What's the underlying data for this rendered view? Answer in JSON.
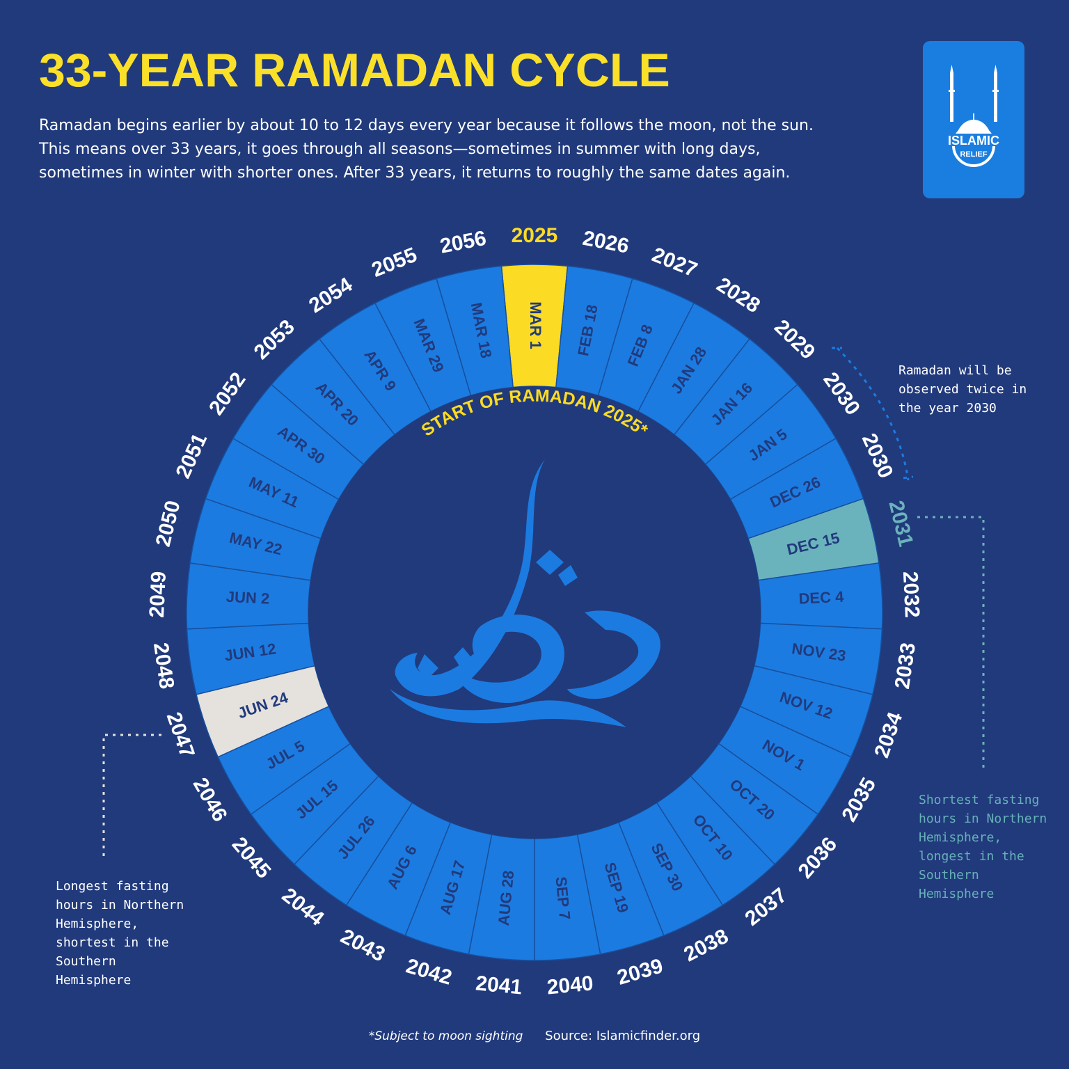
{
  "header": {
    "title": "33-YEAR RAMADAN CYCLE",
    "description": "Ramadan begins earlier by about 10 to 12 days every year because it follows the moon, not the sun. This means over 33 years, it goes through all seasons—sometimes in summer with long days, sometimes in winter with shorter ones. After 33 years, it returns to roughly the same dates again."
  },
  "logo": {
    "line1": "ISLAMIC",
    "line2": "RELIEF",
    "icon": "mosque-icon"
  },
  "wheel": {
    "center_label": "START OF RAMADAN 2025*",
    "center_art": "ramadan-calligraphy",
    "segments": [
      {
        "year": "2025",
        "date": "MAR 1",
        "highlight": "current"
      },
      {
        "year": "2026",
        "date": "FEB 18"
      },
      {
        "year": "2027",
        "date": "FEB 8"
      },
      {
        "year": "2028",
        "date": "JAN 28"
      },
      {
        "year": "2029",
        "date": "JAN 16"
      },
      {
        "year": "2030",
        "date": "JAN 5"
      },
      {
        "year": "2030",
        "date": "DEC 26"
      },
      {
        "year": "2031",
        "date": "DEC 15",
        "highlight": "shortest"
      },
      {
        "year": "2032",
        "date": "DEC 4"
      },
      {
        "year": "2033",
        "date": "NOV 23"
      },
      {
        "year": "2034",
        "date": "NOV 12"
      },
      {
        "year": "2035",
        "date": "NOV 1"
      },
      {
        "year": "2036",
        "date": "OCT 20"
      },
      {
        "year": "2037",
        "date": "OCT 10"
      },
      {
        "year": "2038",
        "date": "SEP 30"
      },
      {
        "year": "2039",
        "date": "SEP 19"
      },
      {
        "year": "2040",
        "date": "SEP 7"
      },
      {
        "year": "2041",
        "date": "AUG 28"
      },
      {
        "year": "2042",
        "date": "AUG 17"
      },
      {
        "year": "2043",
        "date": "AUG 6"
      },
      {
        "year": "2044",
        "date": "JUL 26"
      },
      {
        "year": "2045",
        "date": "JUL 15"
      },
      {
        "year": "2046",
        "date": "JUL 5"
      },
      {
        "year": "2047",
        "date": "JUN 24",
        "highlight": "longest"
      },
      {
        "year": "2048",
        "date": "JUN 12"
      },
      {
        "year": "2049",
        "date": "JUN 2"
      },
      {
        "year": "2050",
        "date": "MAY 22"
      },
      {
        "year": "2051",
        "date": "MAY 11"
      },
      {
        "year": "2052",
        "date": "APR 30"
      },
      {
        "year": "2053",
        "date": "APR 20"
      },
      {
        "year": "2054",
        "date": "APR 9"
      },
      {
        "year": "2055",
        "date": "MAR 29"
      },
      {
        "year": "2056",
        "date": "MAR 18"
      }
    ]
  },
  "notes": {
    "twice_2030": "Ramadan will be observed twice in the year 2030",
    "shortest": "Shortest fasting hours in Northern Hemisphere, longest in the Southern Hemisphere",
    "longest": "Longest fasting hours in Northern Hemisphere, shortest in the Southern Hemisphere"
  },
  "footer": {
    "footnote": "*Subject to moon sighting",
    "source": "Source: Islamicfinder.org"
  },
  "colors": {
    "background": "#213a7c",
    "ring": "#1c7be0",
    "ring_line": "#17509e",
    "current": "#fbdb23",
    "shortest": "#6bb3bc",
    "longest": "#e5e1dc",
    "date_text": "#213a7c",
    "year_text": "#ffffff",
    "shortest_year_text": "#6bb3bc",
    "title": "#fbe02a"
  }
}
